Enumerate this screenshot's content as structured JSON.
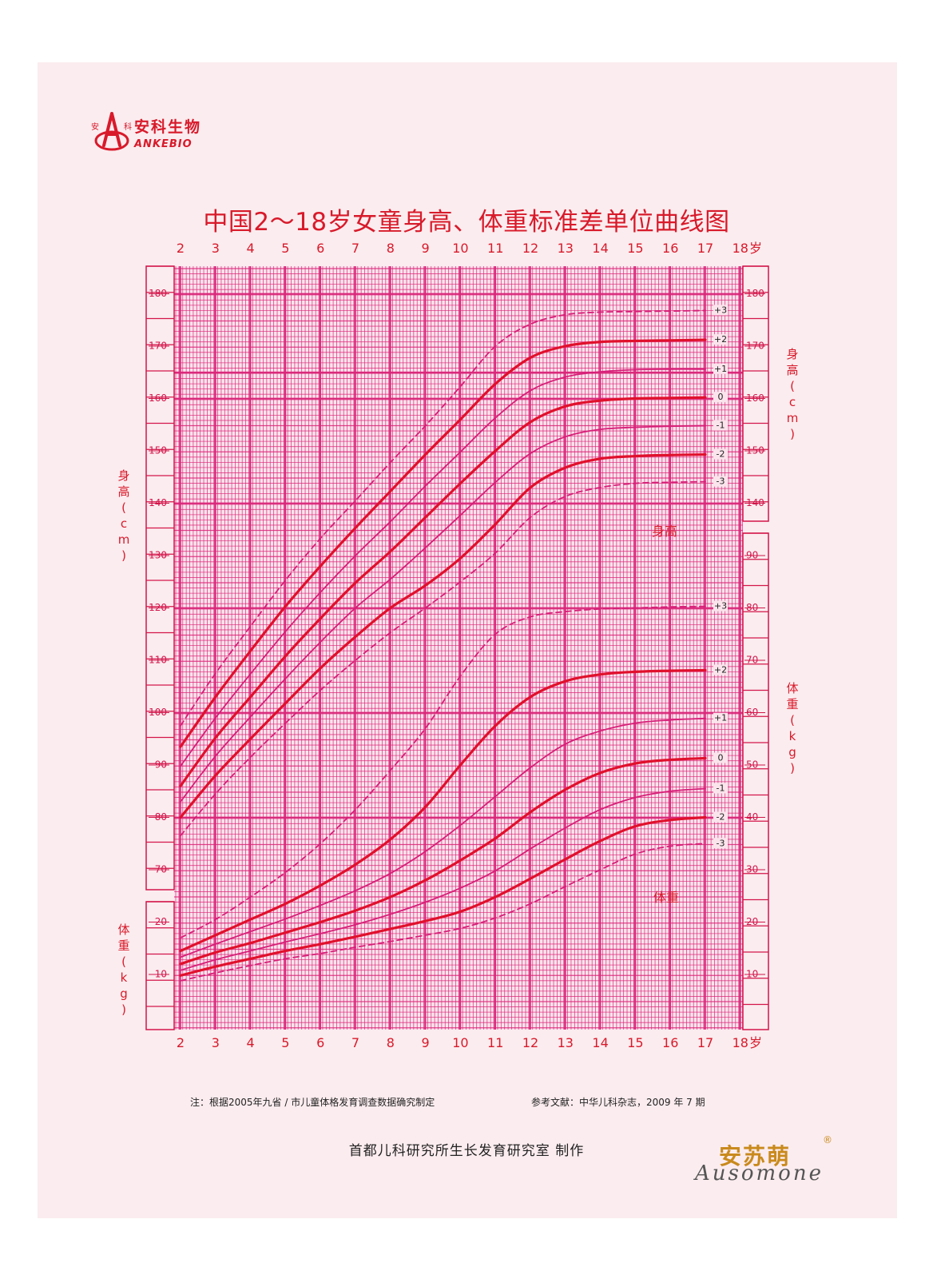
{
  "header": {
    "brand_cn": "安科生物",
    "brand_en": "ANKEBIO",
    "logo_glyph_left": "安",
    "logo_glyph_right": "科",
    "title": "中国2～18岁女童身高、体重标准差单位曲线图"
  },
  "chart_data": {
    "type": "line",
    "title": "中国2～18岁女童身高、体重标准差单位曲线图",
    "x_unit": "岁",
    "x_ticks": [
      "2",
      "3",
      "4",
      "5",
      "6",
      "7",
      "8",
      "9",
      "10",
      "11",
      "12",
      "13",
      "14",
      "15",
      "16",
      "17",
      "18"
    ],
    "xlim": [
      2,
      18
    ],
    "height": {
      "axis_label": [
        "身",
        "高",
        "(",
        "c",
        "m",
        ")"
      ],
      "unit": "cm",
      "ylim": [
        65,
        185
      ],
      "ticks": [
        70,
        80,
        90,
        100,
        110,
        120,
        130,
        140,
        150,
        160,
        170,
        180
      ],
      "right_ticks": [
        140,
        150,
        160,
        170,
        180
      ],
      "section_label": "身高",
      "x": [
        2,
        3,
        4,
        5,
        6,
        7,
        8,
        9,
        10,
        11,
        12,
        13,
        14,
        15,
        16,
        17
      ],
      "series": [
        {
          "name": "+3",
          "style": "dashed",
          "values": [
            97.5,
            107.5,
            116.5,
            125.3,
            133.3,
            140.5,
            147.8,
            154.8,
            162.3,
            170.0,
            174.2,
            176.0,
            176.5,
            176.6,
            176.7,
            176.8
          ]
        },
        {
          "name": "+2",
          "style": "bold",
          "values": [
            93.5,
            103.0,
            111.8,
            120.3,
            128.0,
            135.3,
            142.3,
            149.3,
            156.0,
            162.8,
            167.8,
            170.0,
            170.8,
            171.0,
            171.1,
            171.2
          ]
        },
        {
          "name": "+1",
          "style": "thin",
          "values": [
            89.8,
            99.0,
            107.4,
            115.5,
            123.0,
            130.0,
            136.5,
            143.3,
            149.8,
            156.3,
            161.5,
            164.1,
            165.1,
            165.5,
            165.6,
            165.6
          ]
        },
        {
          "name": "0",
          "style": "bold",
          "values": [
            86.0,
            95.2,
            103.0,
            110.8,
            118.0,
            124.8,
            130.8,
            137.3,
            143.8,
            150.0,
            155.5,
            158.5,
            159.6,
            160.0,
            160.1,
            160.2
          ]
        },
        {
          "name": "-1",
          "style": "thin",
          "values": [
            83.0,
            91.7,
            99.2,
            106.5,
            113.5,
            120.0,
            125.5,
            131.5,
            137.7,
            144.0,
            149.5,
            152.7,
            154.1,
            154.5,
            154.7,
            154.8
          ]
        },
        {
          "name": "-2",
          "style": "bold",
          "values": [
            80.0,
            88.0,
            95.0,
            101.8,
            108.5,
            114.5,
            120.0,
            124.3,
            129.5,
            136.0,
            143.0,
            146.8,
            148.5,
            149.0,
            149.2,
            149.3
          ]
        },
        {
          "name": "-3",
          "style": "dashed",
          "values": [
            76.5,
            84.5,
            91.5,
            98.0,
            104.3,
            110.0,
            115.3,
            120.0,
            125.0,
            130.5,
            137.3,
            141.3,
            143.0,
            143.8,
            144.0,
            144.1
          ]
        }
      ]
    },
    "weight": {
      "axis_label": [
        "体",
        "重",
        "(",
        "k",
        "g",
        ")"
      ],
      "unit": "kg",
      "ylim": [
        0,
        95
      ],
      "ticks_left": [
        10,
        20
      ],
      "ticks_right": [
        10,
        20,
        30,
        40,
        50,
        60,
        70,
        80,
        90
      ],
      "section_label": "体重",
      "x": [
        2,
        3,
        4,
        5,
        6,
        7,
        8,
        9,
        10,
        11,
        12,
        13,
        14,
        15,
        16,
        17
      ],
      "series": [
        {
          "name": "+3",
          "style": "dashed",
          "values": [
            17.0,
            20.5,
            24.8,
            29.5,
            35.0,
            41.5,
            49.0,
            57.0,
            67.0,
            75.0,
            78.3,
            79.3,
            79.8,
            80.0,
            80.2,
            80.3
          ]
        },
        {
          "name": "+2",
          "style": "bold",
          "values": [
            14.5,
            17.5,
            20.5,
            23.5,
            27.0,
            31.0,
            35.8,
            42.0,
            50.0,
            57.5,
            63.0,
            66.0,
            67.3,
            67.8,
            68.0,
            68.1
          ]
        },
        {
          "name": "+1",
          "style": "thin",
          "values": [
            13.3,
            15.8,
            18.2,
            20.6,
            23.2,
            26.0,
            29.3,
            33.5,
            38.5,
            44.0,
            49.5,
            54.0,
            56.5,
            58.0,
            58.6,
            58.9
          ]
        },
        {
          "name": "0",
          "style": "bold",
          "values": [
            12.0,
            14.2,
            16.0,
            18.0,
            20.0,
            22.2,
            24.8,
            28.0,
            31.8,
            36.0,
            41.0,
            45.3,
            48.5,
            50.3,
            51.0,
            51.3
          ]
        },
        {
          "name": "-1",
          "style": "thin",
          "values": [
            10.8,
            12.8,
            14.5,
            16.2,
            17.8,
            19.5,
            21.5,
            23.8,
            26.5,
            29.8,
            34.0,
            38.0,
            41.5,
            43.8,
            45.0,
            45.5
          ]
        },
        {
          "name": "-2",
          "style": "bold",
          "values": [
            9.8,
            11.5,
            13.0,
            14.5,
            15.8,
            17.2,
            18.7,
            20.2,
            22.0,
            24.8,
            28.3,
            32.0,
            35.5,
            38.3,
            39.5,
            40.0
          ]
        },
        {
          "name": "-3",
          "style": "dashed",
          "values": [
            8.8,
            10.3,
            11.7,
            13.0,
            14.0,
            15.2,
            16.3,
            17.5,
            18.8,
            20.8,
            23.5,
            26.8,
            30.0,
            33.0,
            34.5,
            35.0
          ]
        }
      ]
    },
    "colors": {
      "grid": "#d9267a",
      "frame": "#d3154a",
      "curve_bold": "#e0102c",
      "curve_thin": "#d61e78",
      "background": "#fbecef",
      "label": "#d81a2a"
    }
  },
  "footer": {
    "note_left": "注：根据2005年九省 / 市儿童体格发育调查数据确究制定",
    "note_right": "参考文献：中华儿科杂志，2009 年 7 期",
    "producer": "首都儿科研究所生长发育研究室  制作",
    "brand_cn": "安苏萌",
    "brand_en": "Ausomone",
    "brand_reg": "®"
  }
}
